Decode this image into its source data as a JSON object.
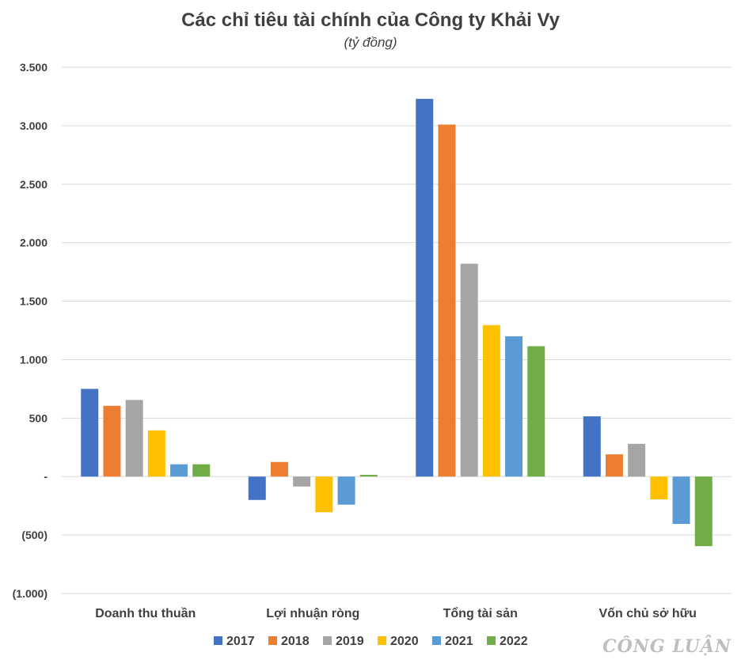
{
  "chart_data": {
    "type": "bar",
    "title": "Các chỉ tiêu tài chính của Công ty Khải Vy",
    "subtitle": "(tỷ đồng)",
    "categories": [
      "Doanh thu thuần",
      "Lợi nhuận ròng",
      "Tổng tài sản",
      "Vốn chủ sở hữu"
    ],
    "series": [
      {
        "name": "2017",
        "color": "#4472C4",
        "values": [
          750,
          -200,
          3230,
          515
        ]
      },
      {
        "name": "2018",
        "color": "#ED7D31",
        "values": [
          605,
          125,
          3010,
          190
        ]
      },
      {
        "name": "2019",
        "color": "#A5A5A5",
        "values": [
          655,
          -85,
          1820,
          280
        ]
      },
      {
        "name": "2020",
        "color": "#FFC000",
        "values": [
          395,
          -305,
          1295,
          -195
        ]
      },
      {
        "name": "2021",
        "color": "#5B9BD5",
        "values": [
          105,
          -240,
          1200,
          -405
        ]
      },
      {
        "name": "2022",
        "color": "#70AD47",
        "values": [
          105,
          15,
          1115,
          -595
        ]
      }
    ],
    "ylim": [
      -1000,
      3500
    ],
    "yticks": [
      3500,
      3000,
      2500,
      2000,
      1500,
      1000,
      500,
      0,
      -500,
      -1000
    ],
    "ytick_labels": [
      "3.500",
      "3.000",
      "2.500",
      "2.000",
      "1.500",
      "1.000",
      "500",
      "-",
      "(500)",
      "(1.000)"
    ],
    "grid": true,
    "legend_position": "bottom"
  },
  "watermark": "CÔNG LUẬN"
}
